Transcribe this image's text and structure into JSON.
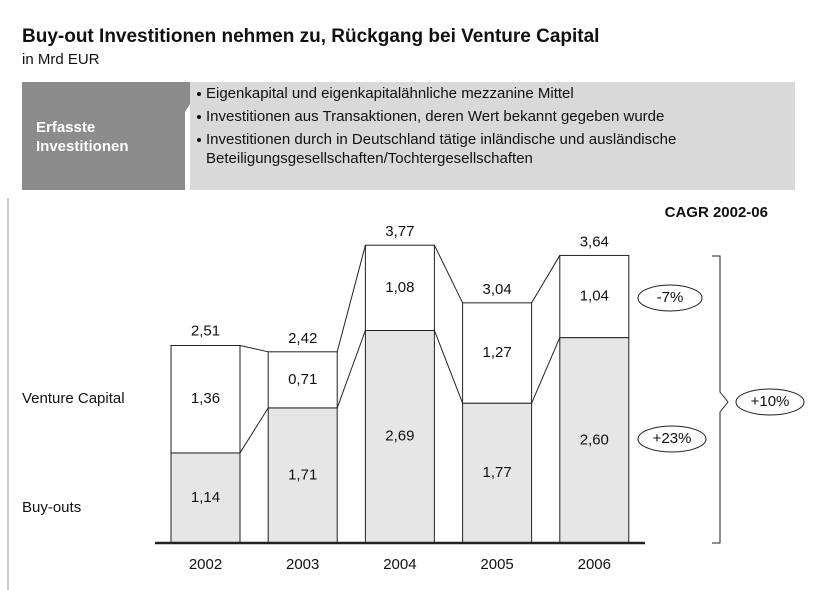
{
  "header": {
    "title": "Buy-out Investitionen nehmen zu, Rückgang bei Venture Capital",
    "subtitle": "in Mrd EUR",
    "box_label": "Erfasste Investitionen",
    "bullets": [
      "Eigenkapital und eigenkapitalähnliche mezzanine Mittel",
      "Investitionen aus Transaktionen, deren Wert bekannt gegeben wurde",
      "Investitionen durch in Deutschland tätige inländische und ausländische Beteiligungsgesellschaften/Tochtergesellschaften"
    ]
  },
  "chart_data": {
    "type": "stacked_bar",
    "categories": [
      "2002",
      "2003",
      "2004",
      "2005",
      "2006"
    ],
    "series": [
      {
        "name": "Buy-outs",
        "color": "#e6e6e6",
        "values": [
          1.14,
          1.71,
          2.69,
          1.77,
          2.6
        ],
        "value_labels": [
          "1,14",
          "1,71",
          "2,69",
          "1,77",
          "2,60"
        ]
      },
      {
        "name": "Venture Capital",
        "color": "#ffffff",
        "values": [
          1.36,
          0.71,
          1.08,
          1.27,
          1.04
        ],
        "value_labels": [
          "1,36",
          "0,71",
          "1,08",
          "1,27",
          "1,04"
        ]
      }
    ],
    "totals": {
      "values": [
        2.51,
        2.42,
        3.77,
        3.04,
        3.64
      ],
      "value_labels": [
        "2,51",
        "2,42",
        "3,77",
        "3,04",
        "3,64"
      ]
    },
    "ylim": [
      0,
      4
    ],
    "annotations": {
      "title": "CAGR 2002-06",
      "series": [
        "+23%",
        "-7%"
      ],
      "total": "+10%"
    }
  }
}
